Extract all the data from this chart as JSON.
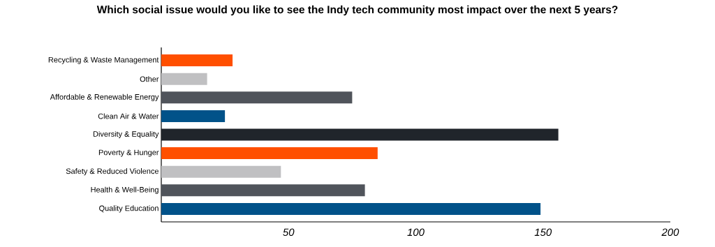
{
  "chart_data": {
    "type": "bar",
    "orientation": "horizontal",
    "title": "Which social issue would you like to see the Indy tech community most impact over the next 5 years?",
    "categories": [
      "Recycling & Waste Management",
      "Other",
      "Affordable & Renewable Energy",
      "Clean Air & Water",
      "Diversity & Equality",
      "Poverty & Hunger",
      "Safety & Reduced Violence",
      "Health & Well-Being",
      "Quality Education"
    ],
    "values": [
      28,
      18,
      75,
      25,
      156,
      85,
      47,
      80,
      149
    ],
    "colors": [
      "#ff4f00",
      "#c0c0c2",
      "#50545b",
      "#015289",
      "#20252b",
      "#ff4f00",
      "#c0c0c2",
      "#50545b",
      "#015289"
    ],
    "xlim": [
      0,
      200
    ],
    "xticks": [
      50,
      100,
      150,
      200
    ]
  }
}
